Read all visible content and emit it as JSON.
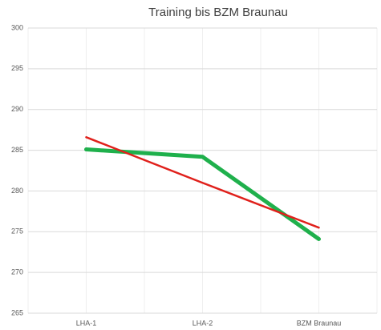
{
  "chart_data": {
    "type": "line",
    "title": "Training bis BZM Braunau",
    "categories": [
      "LHA-1",
      "LHA-2",
      "BZM Braunau"
    ],
    "series": [
      {
        "color": "#1fb04c",
        "values": [
          285.1,
          284.2,
          274.1
        ]
      },
      {
        "color": "#e0201b",
        "values": [
          286.6,
          281.0,
          275.5
        ]
      }
    ],
    "ylim": [
      265,
      300
    ],
    "yticks": [
      265,
      270,
      275,
      280,
      285,
      290,
      295,
      300
    ],
    "grid": true
  }
}
